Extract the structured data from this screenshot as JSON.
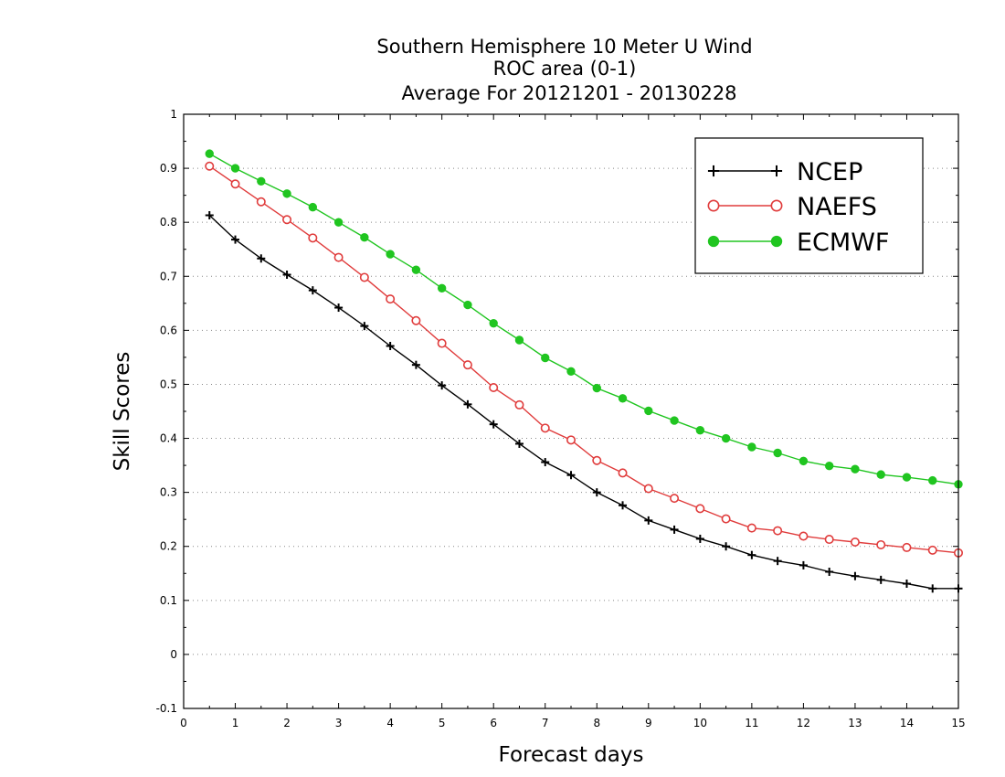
{
  "chart_data": {
    "type": "line",
    "title_lines": [
      "Southern Hemisphere 10 Meter U Wind",
      "ROC area (0-1)",
      "Average For 20121201 - 20130228"
    ],
    "xlabel": "Forecast days",
    "ylabel": "Skill Scores",
    "xlim": [
      0,
      15
    ],
    "ylim": [
      -0.1,
      1
    ],
    "x_ticks": [
      0,
      1,
      2,
      3,
      4,
      5,
      6,
      7,
      8,
      9,
      10,
      11,
      12,
      13,
      14,
      15
    ],
    "y_ticks": [
      -0.1,
      0,
      0.1,
      0.2,
      0.3,
      0.4,
      0.5,
      0.6,
      0.7,
      0.8,
      0.9,
      1
    ],
    "y_tick_labels": [
      "-0.1",
      "0",
      "0.1",
      "0.2",
      "0.3",
      "0.4",
      "0.5",
      "0.6",
      "0.7",
      "0.8",
      "0.9",
      "1"
    ],
    "grid": "horizontal dotted",
    "legend_position": "top-right",
    "x": [
      0.5,
      1,
      1.5,
      2,
      2.5,
      3,
      3.5,
      4,
      4.5,
      5,
      5.5,
      6,
      6.5,
      7,
      7.5,
      8,
      8.5,
      9,
      9.5,
      10,
      10.5,
      11,
      11.5,
      12,
      12.5,
      13,
      13.5,
      14,
      14.5,
      15
    ],
    "series": [
      {
        "name": "NCEP",
        "color": "#000000",
        "marker": "plus",
        "values": [
          0.813,
          0.768,
          0.733,
          0.703,
          0.674,
          0.642,
          0.608,
          0.571,
          0.536,
          0.498,
          0.463,
          0.426,
          0.39,
          0.356,
          0.332,
          0.3,
          0.276,
          0.248,
          0.231,
          0.214,
          0.2,
          0.184,
          0.173,
          0.165,
          0.153,
          0.145,
          0.138,
          0.131,
          0.122,
          0.122
        ]
      },
      {
        "name": "NAEFS",
        "color": "#e03c3c",
        "marker": "open-circle",
        "values": [
          0.904,
          0.871,
          0.838,
          0.805,
          0.771,
          0.735,
          0.698,
          0.658,
          0.618,
          0.576,
          0.536,
          0.494,
          0.462,
          0.419,
          0.397,
          0.359,
          0.336,
          0.307,
          0.289,
          0.27,
          0.251,
          0.234,
          0.229,
          0.219,
          0.213,
          0.208,
          0.203,
          0.198,
          0.193,
          0.188
        ]
      },
      {
        "name": "ECMWF",
        "color": "#20c520",
        "marker": "filled-circle",
        "values": [
          0.927,
          0.9,
          0.876,
          0.853,
          0.828,
          0.8,
          0.772,
          0.741,
          0.712,
          0.678,
          0.647,
          0.613,
          0.582,
          0.549,
          0.524,
          0.493,
          0.474,
          0.451,
          0.433,
          0.415,
          0.4,
          0.384,
          0.373,
          0.358,
          0.349,
          0.343,
          0.333,
          0.328,
          0.322,
          0.315
        ]
      }
    ]
  }
}
